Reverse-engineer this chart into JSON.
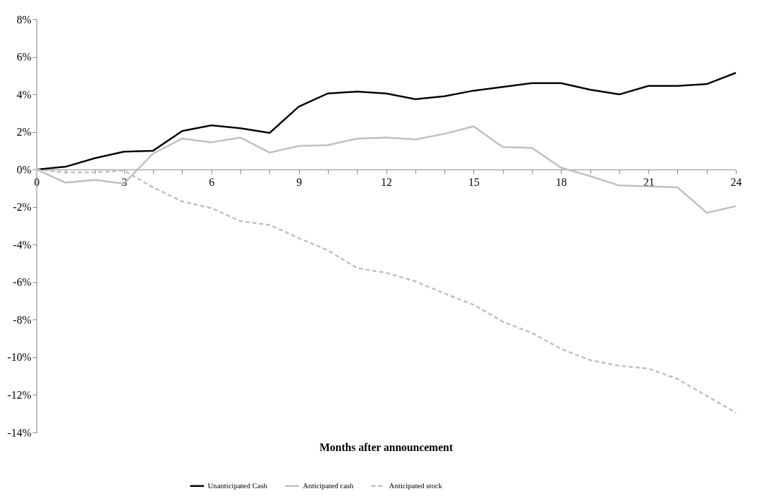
{
  "chart_data": {
    "type": "line",
    "xlabel": "Months after announcement",
    "x": [
      0,
      1,
      2,
      3,
      4,
      5,
      6,
      7,
      8,
      9,
      10,
      11,
      12,
      13,
      14,
      15,
      16,
      17,
      18,
      19,
      20,
      21,
      22,
      23,
      24
    ],
    "series": [
      {
        "name": "Unanticipated Cash",
        "color": "#000000",
        "line_style": "solid",
        "values": [
          0,
          0.15,
          0.6,
          0.95,
          1.0,
          2.05,
          2.35,
          2.2,
          1.95,
          3.35,
          4.05,
          4.15,
          4.05,
          3.75,
          3.9,
          4.2,
          4.4,
          4.6,
          4.6,
          4.25,
          4.0,
          4.45,
          4.45,
          4.55,
          5.15
        ]
      },
      {
        "name": "Anticipated cash",
        "color": "#bfbfbf",
        "line_style": "solid",
        "values": [
          0,
          -0.7,
          -0.55,
          -0.75,
          0.85,
          1.65,
          1.45,
          1.7,
          0.9,
          1.25,
          1.3,
          1.65,
          1.7,
          1.6,
          1.9,
          2.3,
          1.2,
          1.15,
          0.1,
          -0.35,
          -0.85,
          -0.9,
          -0.95,
          -2.3,
          -1.95
        ]
      },
      {
        "name": "Anticipated stock",
        "color": "#bfbfbf",
        "line_style": "dashed",
        "values": [
          0,
          -0.15,
          -0.15,
          -0.05,
          -0.95,
          -1.7,
          -2.05,
          -2.75,
          -2.95,
          -3.65,
          -4.3,
          -5.25,
          -5.5,
          -5.95,
          -6.6,
          -7.2,
          -8.1,
          -8.7,
          -9.55,
          -10.15,
          -10.45,
          -10.6,
          -11.15,
          -12.05,
          -12.95
        ]
      }
    ],
    "xlim": [
      0,
      24
    ],
    "xticks": [
      0,
      {
        "value": 1,
        "label": null
      },
      {
        "value": 2,
        "label": null
      },
      3,
      {
        "value": 4,
        "label": null
      },
      {
        "value": 5,
        "label": null
      },
      6,
      {
        "value": 7,
        "label": null
      },
      {
        "value": 8,
        "label": null
      },
      9,
      {
        "value": 10,
        "label": null
      },
      {
        "value": 11,
        "label": null
      },
      12,
      {
        "value": 13,
        "label": null
      },
      {
        "value": 14,
        "label": null
      },
      15,
      {
        "value": 16,
        "label": null
      },
      {
        "value": 17,
        "label": null
      },
      18,
      {
        "value": 19,
        "label": null
      },
      {
        "value": 20,
        "label": null
      },
      21,
      {
        "value": 22,
        "label": null
      },
      {
        "value": 23,
        "label": null
      },
      24
    ],
    "ylim": [
      -14,
      8
    ],
    "yticks": [
      {
        "value": 8,
        "label": "8%"
      },
      {
        "value": 6,
        "label": "6%"
      },
      {
        "value": 4,
        "label": "4%"
      },
      {
        "value": 2,
        "label": "2%"
      },
      {
        "value": 0,
        "label": "0%"
      },
      {
        "value": -2,
        "label": "-2%"
      },
      {
        "value": -4,
        "label": "-4%"
      },
      {
        "value": -6,
        "label": "-6%"
      },
      {
        "value": -8,
        "label": "-8%"
      },
      {
        "value": -10,
        "label": "-10%"
      },
      {
        "value": -12,
        "label": "-12%"
      },
      {
        "value": -14,
        "label": "-14%"
      }
    ],
    "grid": false,
    "legend": "bottom",
    "marker": "none"
  }
}
